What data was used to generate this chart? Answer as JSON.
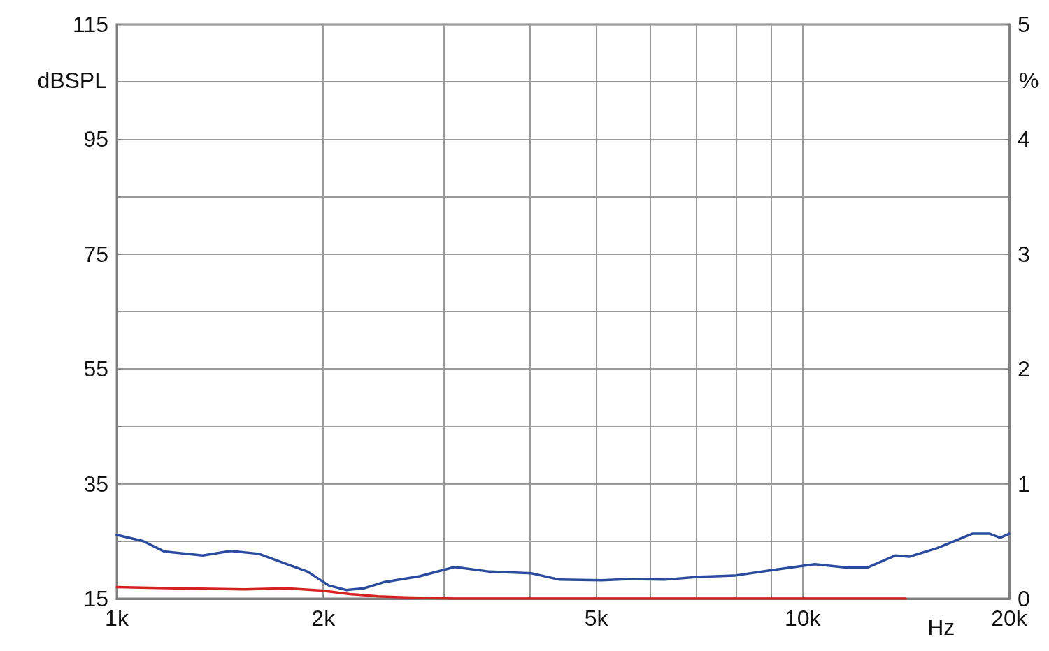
{
  "chart_data": {
    "type": "line",
    "xlabel": "Hz",
    "ylabel": "dBSPL",
    "y2label": "%",
    "log": "x",
    "grid": true,
    "marker": "none",
    "line_style": "solid",
    "xlim": [
      1000,
      20000
    ],
    "xticks": [
      {
        "value": 1000,
        "label": "1k"
      },
      {
        "value": 2000,
        "label": "2k"
      },
      {
        "value": 3000,
        "label": null
      },
      {
        "value": 4000,
        "label": null
      },
      {
        "value": 5000,
        "label": "5k"
      },
      {
        "value": 6000,
        "label": null
      },
      {
        "value": 7000,
        "label": null
      },
      {
        "value": 8000,
        "label": null
      },
      {
        "value": 9000,
        "label": null
      },
      {
        "value": 10000,
        "label": "10k"
      },
      {
        "value": 20000,
        "label": "20k"
      }
    ],
    "ylim": [
      15,
      115
    ],
    "yticks": [
      15,
      {
        "value": 25,
        "label": null
      },
      35,
      {
        "value": 45,
        "label": null
      },
      55,
      {
        "value": 65,
        "label": null
      },
      75,
      {
        "value": 85,
        "label": null
      },
      95,
      {
        "value": 105,
        "label": null
      },
      115
    ],
    "y2lim": [
      0,
      5
    ],
    "y2ticks": [
      0,
      1,
      2,
      3,
      4,
      5
    ],
    "series": [
      {
        "color": "#2b4c9e",
        "x": [
          1000,
          1093,
          1173,
          1335,
          1466,
          1611,
          1769,
          1898,
          2037,
          2160,
          2291,
          2458,
          2764,
          3109,
          3496,
          4024,
          4421,
          5088,
          5590,
          6288,
          7071,
          7953,
          8944,
          10416,
          11574,
          12424,
          13646,
          14302,
          15714,
          17671,
          18740,
          19411,
          20000
        ],
        "values": [
          26.1,
          25.0,
          23.2,
          22.5,
          23.3,
          22.8,
          21.0,
          19.7,
          17.3,
          16.5,
          16.8,
          17.9,
          18.9,
          20.5,
          19.7,
          19.4,
          18.3,
          18.2,
          18.4,
          18.3,
          18.8,
          19.0,
          19.9,
          21.0,
          20.4,
          20.4,
          22.5,
          22.3,
          23.8,
          26.3,
          26.3,
          25.6,
          26.3
        ]
      },
      {
        "color": "#d42222",
        "axis": "y2",
        "x": [
          1000,
          1215,
          1537,
          1769,
          1990,
          2186,
          2401,
          2638,
          3109,
          7071,
          14135
        ],
        "values": [
          0.1,
          0.09,
          0.08,
          0.09,
          0.07,
          0.04,
          0.02,
          0.01,
          0.0,
          0.0,
          0.0
        ]
      }
    ]
  }
}
